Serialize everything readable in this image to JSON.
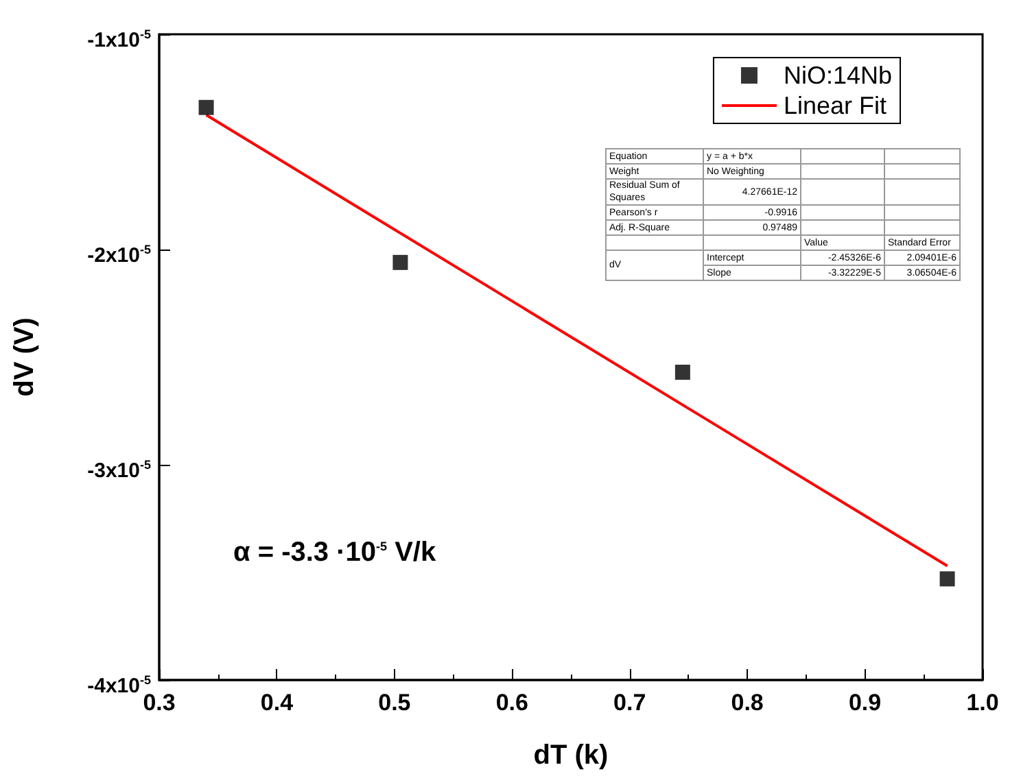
{
  "chart_data": {
    "type": "scatter",
    "xlabel": "dT (k)",
    "ylabel": "dV (V)",
    "xlim": [
      0.3,
      1.0
    ],
    "xticks": [
      0.3,
      0.4,
      0.5,
      0.6,
      0.7,
      0.8,
      0.9,
      {
        "value": 1.0,
        "label": "1.0"
      }
    ],
    "ylim": [
      -4e-05,
      -1e-05
    ],
    "yticks": [
      {
        "value": -4e-05,
        "label": "-4x10$^{-5}$"
      },
      {
        "value": -3e-05,
        "label": "-3x10$^{-5}$"
      },
      {
        "value": -2e-05,
        "label": "-2x10$^{-5}$"
      },
      {
        "value": -1e-05,
        "label": "-1x10$^{-5}$"
      }
    ],
    "x": [
      0.34,
      0.505,
      0.745,
      0.97
    ],
    "series": [
      {
        "name": "NiO:14Nb",
        "color": "#000000",
        "marker": "square",
        "values": [
          -1.34e-05,
          -2.06e-05,
          -2.57e-05,
          -3.53e-05
        ]
      },
      {
        "name": "Linear Fit",
        "type": "line",
        "color": "#ff0000",
        "marker": "none",
        "line_style": "solid",
        "x": [
          0.34,
          0.97
        ],
        "values": [
          -1.375e-05,
          -3.47e-05
        ]
      }
    ],
    "legend": "top right",
    "grid": false,
    "annotations": [
      "α = -3.3 ·10$^{-5}$ V/k",
      "Equation",
      "y = a + b*x",
      "Weight",
      "No Weighting",
      "Residual Sum of Squares",
      "4.27661E-12",
      "Pearson's r",
      "-0.9916",
      "Adj. R-Square",
      "0.97489",
      "Value",
      "Standard Error",
      "dV",
      "Intercept",
      "-2.45326E-6",
      "2.09401E-6",
      "Slope",
      "-3.32229E-5",
      "3.06504E-6"
    ]
  }
}
